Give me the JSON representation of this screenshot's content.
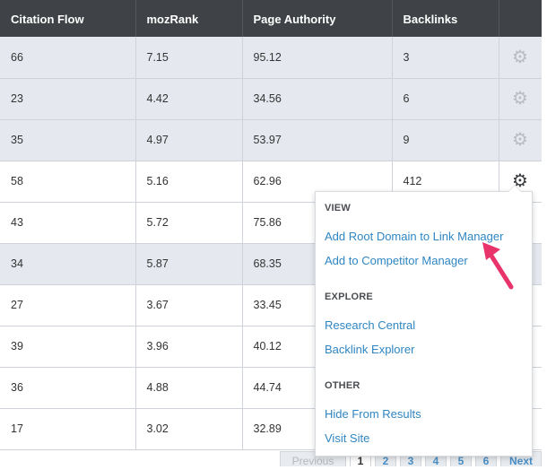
{
  "table": {
    "columns": [
      "Citation Flow",
      "mozRank",
      "Page Authority",
      "Backlinks"
    ],
    "rows": [
      {
        "citation_flow": "66",
        "mozrank": "7.15",
        "page_authority": "95.12",
        "backlinks": "3"
      },
      {
        "citation_flow": "23",
        "mozrank": "4.42",
        "page_authority": "34.56",
        "backlinks": "6"
      },
      {
        "citation_flow": "35",
        "mozrank": "4.97",
        "page_authority": "53.97",
        "backlinks": "9"
      },
      {
        "citation_flow": "58",
        "mozrank": "5.16",
        "page_authority": "62.96",
        "backlinks": "412"
      },
      {
        "citation_flow": "43",
        "mozrank": "5.72",
        "page_authority": "75.86",
        "backlinks": ""
      },
      {
        "citation_flow": "34",
        "mozrank": "5.87",
        "page_authority": "68.35",
        "backlinks": ""
      },
      {
        "citation_flow": "27",
        "mozrank": "3.67",
        "page_authority": "33.45",
        "backlinks": ""
      },
      {
        "citation_flow": "39",
        "mozrank": "3.96",
        "page_authority": "40.12",
        "backlinks": ""
      },
      {
        "citation_flow": "36",
        "mozrank": "4.88",
        "page_authority": "44.74",
        "backlinks": ""
      },
      {
        "citation_flow": "17",
        "mozrank": "3.02",
        "page_authority": "32.89",
        "backlinks": ""
      }
    ],
    "gear_icon": "gear-icon"
  },
  "menu": {
    "sections": [
      {
        "heading": "VIEW",
        "items": [
          "Add Root Domain to Link Manager",
          "Add to Competitor Manager"
        ]
      },
      {
        "heading": "EXPLORE",
        "items": [
          "Research Central",
          "Backlink Explorer"
        ]
      },
      {
        "heading": "OTHER",
        "items": [
          "Hide From Results",
          "Visit Site"
        ]
      }
    ]
  },
  "pagination": {
    "previous": "Previous",
    "pages": [
      "1",
      "2",
      "3",
      "4",
      "5",
      "6"
    ],
    "current": "1",
    "next": "Next"
  },
  "colors": {
    "header_bg": "#3f4347",
    "shaded_row": "#e5e9ef",
    "link": "#2f86c2",
    "annotation_arrow": "#e8336b"
  }
}
